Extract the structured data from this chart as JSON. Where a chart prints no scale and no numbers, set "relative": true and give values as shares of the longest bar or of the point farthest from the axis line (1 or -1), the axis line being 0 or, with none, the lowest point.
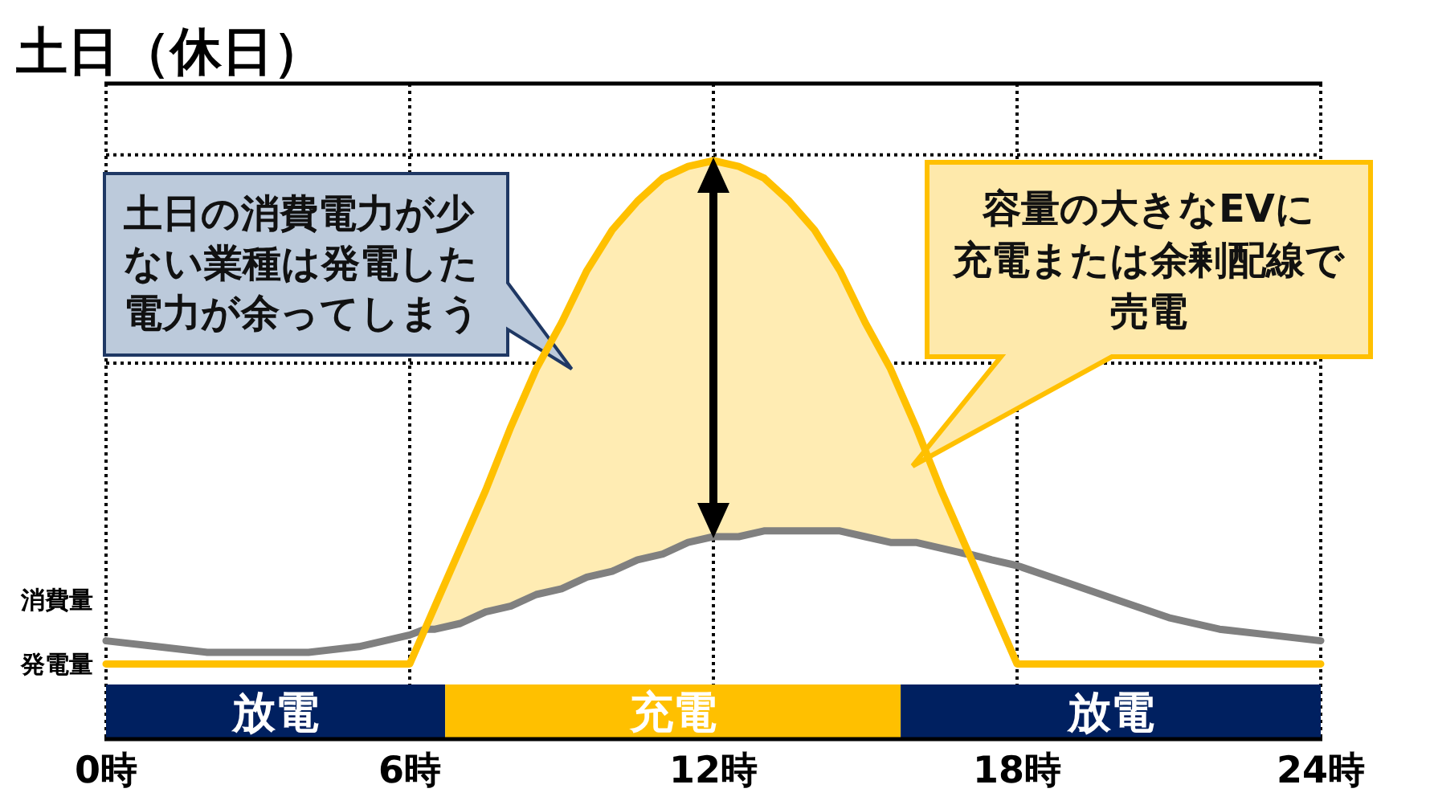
{
  "chart_data": {
    "type": "line",
    "title": "土日（休日）",
    "relative": true,
    "x": [
      0,
      1,
      2,
      3,
      4,
      5,
      6,
      6.3,
      6.5,
      7,
      7.5,
      8,
      8.5,
      9,
      9.5,
      10,
      10.5,
      11,
      11.5,
      12,
      12.5,
      13,
      13.5,
      14,
      14.5,
      15,
      15.5,
      16,
      16.5,
      17,
      17.05,
      17.5,
      18,
      19,
      20,
      21,
      22,
      23,
      24
    ],
    "xlim": [
      0,
      24
    ],
    "xticks": [
      {
        "value": 0,
        "label": "0時"
      },
      {
        "value": 6,
        "label": "6時"
      },
      {
        "value": 12,
        "label": "12時"
      },
      {
        "value": 18,
        "label": "18時"
      },
      {
        "value": 24,
        "label": "24時"
      }
    ],
    "grid": "x",
    "series": [
      {
        "name": "消費量",
        "color": "#808080",
        "values": [
          0.17,
          0.16,
          0.15,
          0.15,
          0.15,
          0.16,
          0.18,
          0.19,
          0.19,
          0.2,
          0.22,
          0.23,
          0.25,
          0.26,
          0.28,
          0.29,
          0.31,
          0.32,
          0.34,
          0.35,
          0.35,
          0.36,
          0.36,
          0.36,
          0.36,
          0.35,
          0.34,
          0.34,
          0.33,
          0.32,
          0.32,
          0.31,
          0.3,
          0.27,
          0.24,
          0.21,
          0.19,
          0.18,
          0.17
        ]
      },
      {
        "name": "発電量",
        "color": "#ffc000",
        "values": [
          0.13,
          0.13,
          0.13,
          0.13,
          0.13,
          0.13,
          0.13,
          0.19,
          0.23,
          0.33,
          0.43,
          0.54,
          0.64,
          0.72,
          0.81,
          0.88,
          0.93,
          0.97,
          0.99,
          1,
          0.99,
          0.97,
          0.93,
          0.88,
          0.81,
          0.72,
          0.64,
          0.54,
          0.43,
          0.33,
          0.32,
          0.23,
          0.13,
          0.13,
          0.13,
          0.13,
          0.13,
          0.13,
          0.13
        ],
        "upper": [
          null,
          null,
          null,
          null,
          null,
          null,
          null,
          0.19,
          0.23,
          0.33,
          0.43,
          0.54,
          0.64,
          0.72,
          0.81,
          0.88,
          0.93,
          0.97,
          0.99,
          1,
          0.99,
          0.97,
          0.93,
          0.88,
          0.81,
          0.72,
          0.64,
          0.54,
          0.43,
          0.33,
          0.32,
          null,
          null,
          null,
          null,
          null,
          null,
          null,
          null
        ],
        "lower": [
          null,
          null,
          null,
          null,
          null,
          null,
          null,
          0.19,
          0.19,
          0.2,
          0.22,
          0.23,
          0.25,
          0.26,
          0.28,
          0.29,
          0.31,
          0.32,
          0.34,
          0.35,
          0.35,
          0.36,
          0.36,
          0.36,
          0.36,
          0.35,
          0.34,
          0.34,
          0.33,
          0.32,
          0.32,
          null,
          null,
          null,
          null,
          null,
          null,
          null,
          null
        ]
      }
    ],
    "ref_lines": [
      {
        "axis": "y",
        "value": 1.01,
        "color": "#000000",
        "line_style": "dotted"
      },
      {
        "axis": "y",
        "value": 0.65,
        "color": "#000000",
        "line_style": "dotted"
      }
    ],
    "bands": [
      {
        "axis": "x",
        "from": 0,
        "to": 6.7,
        "label": "放電",
        "color": "#002060"
      },
      {
        "axis": "x",
        "from": 6.7,
        "to": 15.7,
        "label": "充電",
        "color": "#ffc000"
      },
      {
        "axis": "x",
        "from": 15.7,
        "to": 24,
        "label": "放電",
        "color": "#002060"
      }
    ],
    "annotations": [
      {
        "text": "土日の消費電力が少ない業種は発電した電力が余ってしまう",
        "x": 9.2,
        "y": 0.64
      },
      "容量の大きなEVに充電または余剰配線で売電"
    ]
  }
}
